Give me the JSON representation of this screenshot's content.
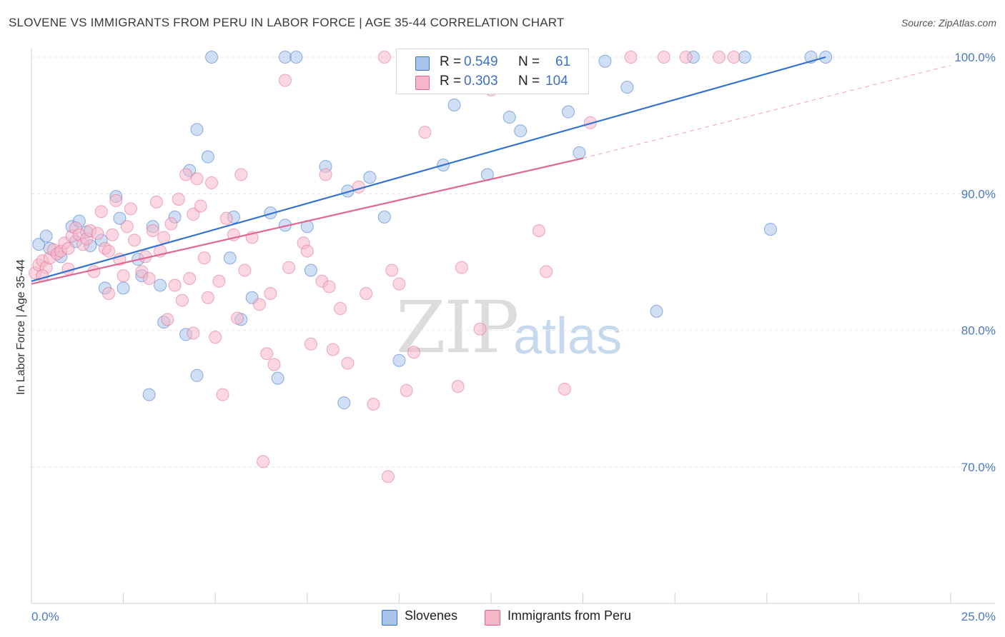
{
  "header": {
    "title": "SLOVENE VS IMMIGRANTS FROM PERU IN LABOR FORCE | AGE 35-44 CORRELATION CHART",
    "source": "Source: ZipAtlas.com"
  },
  "watermark": {
    "zip": "ZIP",
    "atlas": "atlas"
  },
  "legend": {
    "rows": [
      {
        "r_label": "R =",
        "r_value": "0.549",
        "n_label": "N =",
        "n_value": "61",
        "color": "#a9c4ea"
      },
      {
        "r_label": "R =",
        "r_value": "0.303",
        "n_label": "N =",
        "n_value": "104",
        "color": "#f5b6c8"
      }
    ]
  },
  "bottom_legend": {
    "items": [
      {
        "label": "Slovenes",
        "color": "#a9c4ea"
      },
      {
        "label": "Immigrants from Peru",
        "color": "#f5b6c8"
      }
    ]
  },
  "chart_data": {
    "type": "scatter",
    "xlabel": "",
    "ylabel": "In Labor Force | Age 35-44",
    "xlim": [
      0,
      25
    ],
    "ylim": [
      61,
      101
    ],
    "x_tick_labels": [
      "0.0%",
      "25.0%"
    ],
    "y_ticks": [
      70,
      80,
      90,
      100
    ],
    "y_tick_labels": [
      "70.0%",
      "80.0%",
      "90.0%",
      "100.0%"
    ],
    "grid": true,
    "legend_position": "top-center",
    "series": [
      {
        "name": "Slovenes",
        "color": "#3472d0",
        "fill": "#a9c4ea",
        "trend": {
          "x": [
            0.0,
            21.6
          ],
          "y": [
            83.6,
            100.0
          ],
          "dashed_to": null
        },
        "points": [
          [
            0.2,
            86.3
          ],
          [
            0.4,
            86.9
          ],
          [
            0.5,
            86.0
          ],
          [
            0.8,
            85.4
          ],
          [
            1.1,
            87.6
          ],
          [
            1.2,
            86.5
          ],
          [
            1.3,
            88.0
          ],
          [
            1.5,
            87.2
          ],
          [
            1.6,
            86.2
          ],
          [
            1.9,
            86.6
          ],
          [
            2.0,
            83.1
          ],
          [
            2.3,
            89.8
          ],
          [
            2.4,
            88.2
          ],
          [
            2.9,
            85.2
          ],
          [
            3.0,
            84.0
          ],
          [
            3.3,
            87.6
          ],
          [
            3.5,
            83.3
          ],
          [
            3.6,
            80.6
          ],
          [
            3.9,
            88.3
          ],
          [
            4.3,
            91.7
          ],
          [
            4.5,
            94.7
          ],
          [
            4.8,
            92.7
          ],
          [
            5.4,
            85.3
          ],
          [
            5.5,
            88.3
          ],
          [
            5.7,
            80.8
          ],
          [
            6.5,
            88.6
          ],
          [
            6.9,
            87.7
          ],
          [
            7.5,
            87.6
          ],
          [
            7.6,
            84.4
          ],
          [
            8.0,
            92.0
          ],
          [
            8.6,
            90.2
          ],
          [
            9.2,
            91.2
          ],
          [
            9.6,
            88.3
          ],
          [
            10.0,
            77.8
          ],
          [
            10.5,
            99.1
          ],
          [
            11.2,
            92.1
          ],
          [
            11.5,
            96.5
          ],
          [
            12.0,
            98.6
          ],
          [
            12.4,
            91.4
          ],
          [
            13.0,
            95.6
          ],
          [
            13.3,
            94.6
          ],
          [
            14.6,
            96.0
          ],
          [
            14.9,
            93.0
          ],
          [
            15.6,
            99.7
          ],
          [
            16.2,
            97.8
          ],
          [
            17.0,
            81.4
          ],
          [
            18.0,
            100.0
          ],
          [
            19.4,
            100.0
          ],
          [
            20.1,
            87.4
          ],
          [
            21.2,
            100.0
          ],
          [
            21.6,
            100.0
          ],
          [
            3.2,
            75.3
          ],
          [
            4.5,
            76.7
          ],
          [
            6.7,
            76.5
          ],
          [
            8.5,
            74.7
          ],
          [
            4.2,
            79.7
          ],
          [
            6.0,
            82.4
          ],
          [
            2.5,
            83.1
          ],
          [
            4.9,
            100.0
          ],
          [
            6.9,
            100.0
          ],
          [
            7.2,
            100.0
          ]
        ]
      },
      {
        "name": "Immigrants from Peru",
        "color": "#e06890",
        "fill": "#f5b6c8",
        "trend": {
          "x": [
            0.0,
            15.0
          ],
          "y": [
            83.4,
            92.6
          ],
          "dashed_to": [
            25.0,
            99.4
          ]
        },
        "points": [
          [
            0.1,
            84.2
          ],
          [
            0.2,
            84.8
          ],
          [
            0.3,
            85.1
          ],
          [
            0.4,
            84.6
          ],
          [
            0.5,
            85.3
          ],
          [
            0.6,
            85.9
          ],
          [
            0.7,
            85.6
          ],
          [
            0.8,
            85.8
          ],
          [
            0.9,
            86.4
          ],
          [
            1.0,
            86.0
          ],
          [
            1.1,
            86.9
          ],
          [
            1.2,
            87.5
          ],
          [
            1.3,
            87.0
          ],
          [
            1.4,
            86.3
          ],
          [
            1.5,
            86.7
          ],
          [
            1.6,
            87.3
          ],
          [
            1.7,
            84.3
          ],
          [
            1.8,
            87.1
          ],
          [
            1.9,
            88.7
          ],
          [
            2.0,
            86.0
          ],
          [
            2.1,
            85.8
          ],
          [
            2.2,
            87.0
          ],
          [
            2.3,
            89.5
          ],
          [
            2.4,
            85.2
          ],
          [
            2.5,
            84.0
          ],
          [
            2.6,
            87.6
          ],
          [
            2.7,
            88.9
          ],
          [
            2.8,
            86.6
          ],
          [
            3.0,
            84.3
          ],
          [
            3.1,
            85.4
          ],
          [
            3.2,
            83.8
          ],
          [
            3.3,
            87.3
          ],
          [
            3.4,
            89.4
          ],
          [
            3.5,
            85.8
          ],
          [
            3.6,
            86.8
          ],
          [
            3.7,
            80.8
          ],
          [
            3.8,
            87.8
          ],
          [
            3.9,
            83.3
          ],
          [
            4.0,
            89.6
          ],
          [
            4.1,
            82.2
          ],
          [
            4.2,
            91.4
          ],
          [
            4.3,
            83.8
          ],
          [
            4.4,
            88.5
          ],
          [
            4.5,
            91.1
          ],
          [
            4.6,
            89.1
          ],
          [
            4.7,
            85.3
          ],
          [
            4.8,
            82.4
          ],
          [
            4.9,
            90.8
          ],
          [
            5.0,
            79.5
          ],
          [
            5.1,
            83.6
          ],
          [
            5.3,
            88.2
          ],
          [
            5.5,
            87.0
          ],
          [
            5.6,
            80.9
          ],
          [
            5.7,
            91.4
          ],
          [
            5.8,
            84.4
          ],
          [
            6.0,
            86.8
          ],
          [
            6.2,
            81.9
          ],
          [
            6.4,
            78.3
          ],
          [
            6.5,
            82.7
          ],
          [
            6.6,
            77.5
          ],
          [
            6.9,
            98.3
          ],
          [
            7.0,
            84.6
          ],
          [
            7.4,
            86.4
          ],
          [
            7.6,
            79.0
          ],
          [
            7.9,
            83.6
          ],
          [
            8.0,
            91.4
          ],
          [
            8.1,
            83.2
          ],
          [
            8.2,
            78.6
          ],
          [
            8.4,
            81.6
          ],
          [
            8.6,
            77.6
          ],
          [
            8.9,
            90.5
          ],
          [
            9.1,
            82.7
          ],
          [
            9.3,
            74.6
          ],
          [
            9.6,
            100.0
          ],
          [
            9.8,
            84.4
          ],
          [
            10.0,
            83.4
          ],
          [
            10.2,
            75.6
          ],
          [
            10.4,
            78.4
          ],
          [
            10.7,
            94.5
          ],
          [
            11.0,
            100.0
          ],
          [
            11.2,
            99.8
          ],
          [
            11.7,
            84.6
          ],
          [
            12.2,
            80.1
          ],
          [
            12.5,
            97.6
          ],
          [
            13.0,
            100.0
          ],
          [
            13.3,
            100.0
          ],
          [
            13.8,
            87.3
          ],
          [
            14.0,
            84.3
          ],
          [
            14.5,
            75.7
          ],
          [
            15.2,
            95.2
          ],
          [
            16.3,
            100.0
          ],
          [
            17.2,
            100.0
          ],
          [
            17.8,
            100.0
          ],
          [
            18.7,
            100.0
          ],
          [
            19.1,
            100.0
          ],
          [
            11.6,
            75.9
          ],
          [
            9.7,
            69.3
          ],
          [
            6.3,
            70.4
          ],
          [
            7.5,
            85.8
          ],
          [
            5.2,
            75.3
          ],
          [
            4.4,
            79.8
          ],
          [
            2.1,
            82.7
          ],
          [
            1.0,
            84.5
          ],
          [
            0.3,
            84.0
          ]
        ]
      }
    ]
  }
}
